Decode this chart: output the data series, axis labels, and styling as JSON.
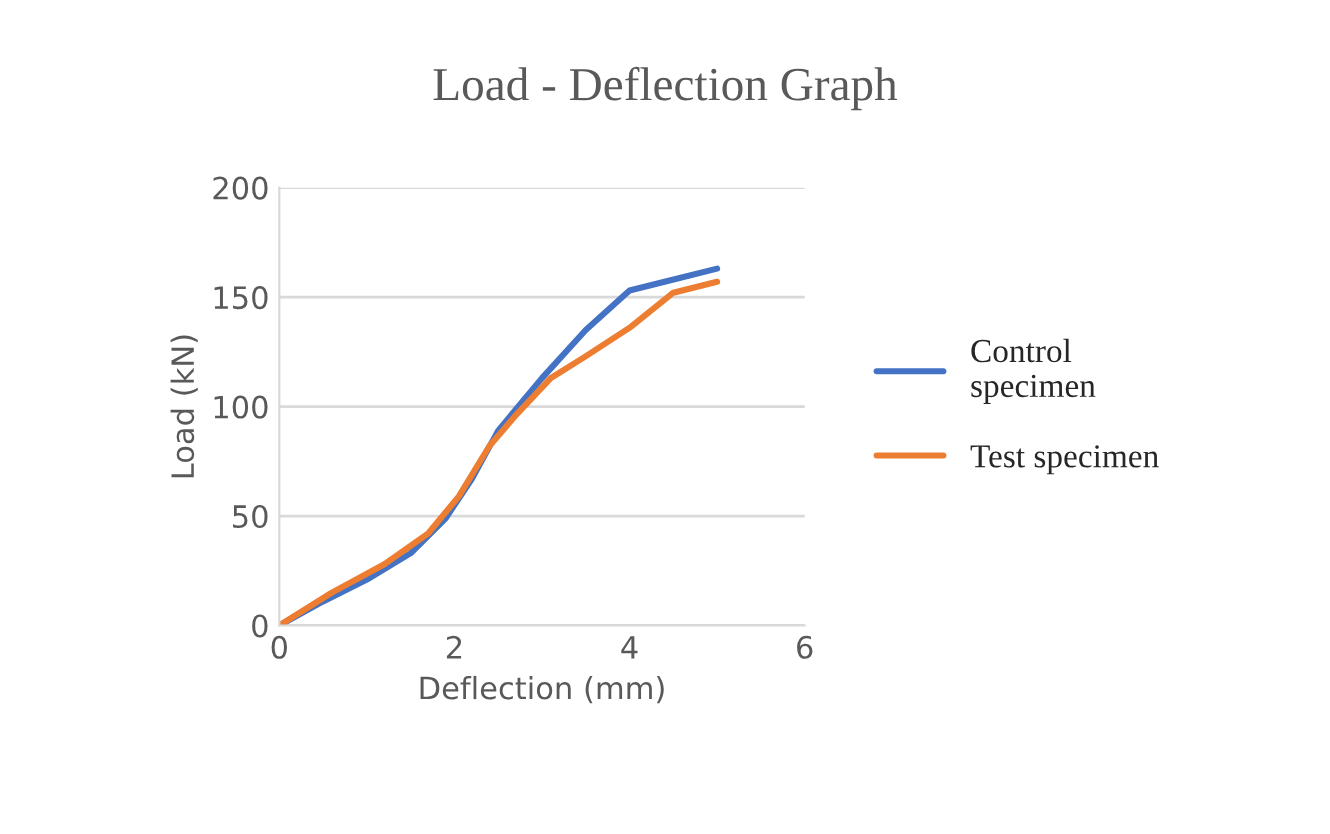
{
  "chart_data": {
    "type": "line",
    "title": "Load - Deflection Graph",
    "xlabel": "Deflection (mm)",
    "ylabel": "Load (kN)",
    "xlim": [
      0,
      6
    ],
    "xticks": [
      0,
      2,
      4,
      6
    ],
    "ylim": [
      0,
      200
    ],
    "yticks": [
      0,
      50,
      100,
      150,
      200
    ],
    "grid": "y",
    "legend": "right",
    "marker": "none",
    "line_style": "solid",
    "series": [
      {
        "name": "Control\nspecimen",
        "color": "#4472c4",
        "x": [
          0,
          0.5,
          1.0,
          1.5,
          1.9,
          2.2,
          2.5,
          3.0,
          3.5,
          4.0,
          4.4,
          5.0
        ],
        "values": [
          0,
          11,
          21,
          33,
          49,
          67,
          89,
          113,
          135,
          153,
          157,
          163
        ]
      },
      {
        "name": "Test specimen",
        "color": "#ed7d31",
        "x": [
          0,
          0.6,
          1.2,
          1.7,
          2.05,
          2.4,
          2.7,
          3.1,
          3.5,
          4.0,
          4.5,
          5.0
        ],
        "values": [
          0,
          15,
          28,
          42,
          59,
          82,
          96,
          113,
          123,
          136,
          152,
          157
        ]
      }
    ]
  }
}
